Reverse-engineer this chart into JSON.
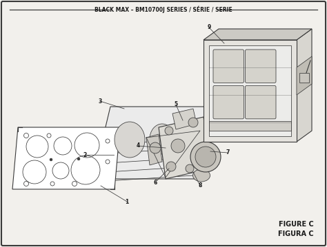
{
  "title": "BLACK MAX – BM10700J SERIES / SÉRIE / SERIE",
  "figure_label": "FIGURE C",
  "figura_label": "FIGURA C",
  "bg_color": "#f2f0ec",
  "line_color": "#3a3a3a",
  "text_color": "#1a1a1a",
  "fill_light": "#ffffff",
  "fill_mid": "#e8e6e2",
  "fill_dark": "#d0ceca"
}
